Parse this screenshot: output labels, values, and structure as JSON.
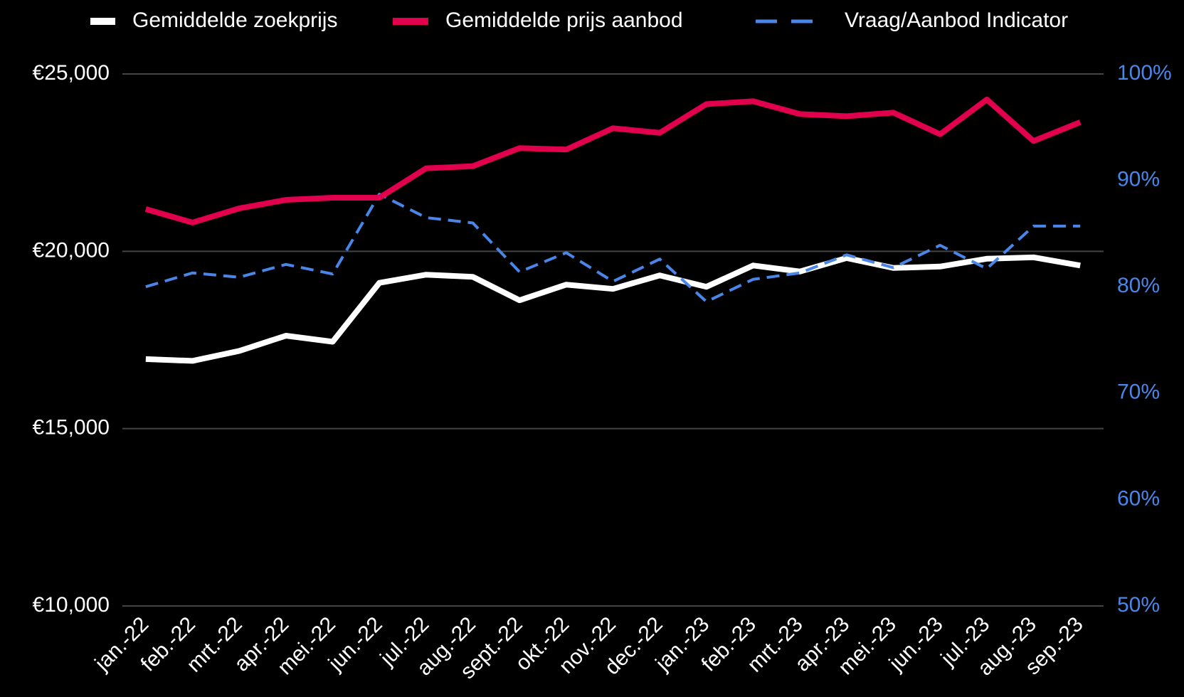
{
  "chart_data": {
    "type": "line",
    "categories": [
      "jan.-22",
      "feb.-22",
      "mrt.-22",
      "apr.-22",
      "mei.-22",
      "jun.-22",
      "jul.-22",
      "aug.-22",
      "sept.-22",
      "okt.-22",
      "nov.-22",
      "dec.-22",
      "jan.-23",
      "feb.-23",
      "mrt.-23",
      "apr.-23",
      "mei.-23",
      "jun.-23",
      "jul.-23",
      "aug.-23",
      "sep.-23"
    ],
    "series": [
      {
        "name": "Gemiddelde zoekprijs",
        "color": "#ffffff",
        "line_style": "solid",
        "axis": "y",
        "values": [
          16960,
          16910,
          17190,
          17620,
          17450,
          19110,
          19340,
          19280,
          18620,
          19060,
          18940,
          19320,
          19000,
          19600,
          19430,
          19810,
          19530,
          19570,
          19790,
          19830,
          19600
        ]
      },
      {
        "name": "Gemiddelde prijs aanbod",
        "color": "#e0004d",
        "line_style": "solid",
        "axis": "y",
        "values": [
          21190,
          20810,
          21210,
          21450,
          21510,
          21510,
          22340,
          22400,
          22910,
          22870,
          23470,
          23340,
          24150,
          24230,
          23870,
          23810,
          23910,
          23300,
          24280,
          23110,
          23640
        ]
      },
      {
        "name": "Vraag/Aanbod Indicator",
        "color": "#4a86e8",
        "line_style": "dashed",
        "axis": "y2",
        "values": [
          80,
          81.3,
          80.9,
          82.1,
          81.2,
          88.7,
          86.5,
          86.0,
          81.4,
          83.2,
          80.5,
          82.6,
          78.6,
          80.7,
          81.3,
          83.0,
          81.8,
          83.9,
          81.7,
          85.7,
          85.7
        ]
      }
    ],
    "ylim": [
      10000,
      25000
    ],
    "yticks": [
      {
        "value": 10000,
        "label": "€10,000"
      },
      {
        "value": 15000,
        "label": "€15,000"
      },
      {
        "value": 20000,
        "label": "€20,000"
      },
      {
        "value": 25000,
        "label": "€25,000"
      }
    ],
    "y2lim": [
      50,
      100
    ],
    "y2ticks": [
      {
        "value": 50,
        "label": "50%"
      },
      {
        "value": 60,
        "label": "60%"
      },
      {
        "value": 70,
        "label": "70%"
      },
      {
        "value": 80,
        "label": "80%"
      },
      {
        "value": 90,
        "label": "90%"
      },
      {
        "value": 100,
        "label": "100%"
      }
    ],
    "y2_color": "#4a86e8",
    "grid": true,
    "legend": "top"
  }
}
